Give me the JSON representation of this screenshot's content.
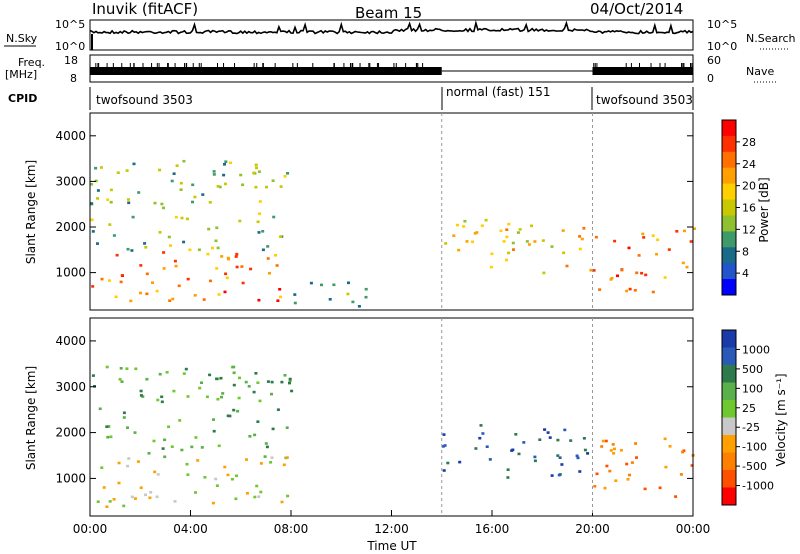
{
  "header": {
    "station": "Inuvik (fitACF)",
    "beam": "Beam 15",
    "date": "04/Oct/2014"
  },
  "panels": {
    "nsky": {
      "label": "N.Sky",
      "right_label": "N.Search",
      "ticks_left": [
        "10^5",
        "10^0"
      ],
      "ticks_right": [
        "10^5",
        "10^0"
      ]
    },
    "freq": {
      "label_top": "Freq.",
      "label_bottom": "[MHz]",
      "right_label": "Nave",
      "ticks_left": [
        "18",
        "8"
      ],
      "ticks_right": [
        "60",
        "0"
      ]
    },
    "cpid": {
      "label": "CPID",
      "segments": [
        {
          "name": "twofsound 3503",
          "start_hour": 0,
          "end_hour": 14
        },
        {
          "name": "normal (fast) 151",
          "start_hour": 14,
          "end_hour": 20
        },
        {
          "name": "twofsound 3503",
          "start_hour": 20,
          "end_hour": 24
        }
      ]
    }
  },
  "chart_data": [
    {
      "type": "heatmap",
      "title": "",
      "ylabel": "Slant Range [km]",
      "xlabel": "",
      "xlim": [
        0,
        24
      ],
      "ylim": [
        180,
        4500
      ],
      "y_ticks": [
        "1000",
        "2000",
        "3000",
        "4000"
      ],
      "colorbar": {
        "label": "Power [dB]",
        "ticks": [
          "4",
          "8",
          "12",
          "16",
          "20",
          "24",
          "28"
        ],
        "range": [
          0,
          32
        ],
        "colors": [
          "#0000ff",
          "#2255cc",
          "#1a6a8a",
          "#3f9a6a",
          "#8ec030",
          "#c8c800",
          "#ffd000",
          "#ffa000",
          "#ff7000",
          "#ff3000",
          "#ff0000"
        ]
      },
      "description_regions": [
        {
          "hours": [
            0,
            8
          ],
          "range_km": [
            400,
            1500
          ],
          "power_db": 26
        },
        {
          "hours": [
            0,
            8
          ],
          "range_km": [
            1500,
            3500
          ],
          "power_db": 14
        },
        {
          "hours": [
            8,
            11
          ],
          "range_km": [
            200,
            900
          ],
          "power_db": 10
        },
        {
          "hours": [
            14,
            20
          ],
          "range_km": [
            1000,
            2200
          ],
          "power_db": 18
        },
        {
          "hours": [
            20,
            24
          ],
          "range_km": [
            600,
            2000
          ],
          "power_db": 26
        }
      ]
    },
    {
      "type": "heatmap",
      "title": "",
      "ylabel": "Slant Range [km]",
      "xlabel": "Time UT",
      "xlim": [
        0,
        24
      ],
      "ylim": [
        180,
        4500
      ],
      "x_ticks": [
        "00:00",
        "04:00",
        "08:00",
        "12:00",
        "16:00",
        "20:00",
        "00:00"
      ],
      "y_ticks": [
        "1000",
        "2000",
        "3000",
        "4000"
      ],
      "colorbar": {
        "label": "Velocity [m s⁻¹]",
        "ticks": [
          "1000",
          "500",
          "100",
          "25",
          "-25",
          "-100",
          "-500",
          "-1000"
        ],
        "colors": [
          "#1a3aa8",
          "#2a5ab8",
          "#2e7a4a",
          "#5ab04a",
          "#70c830",
          "#c8c8c8",
          "#ffa000",
          "#ff8000",
          "#ff5000",
          "#ff0000"
        ]
      },
      "description_regions": [
        {
          "hours": [
            0,
            8
          ],
          "range_km": [
            400,
            1500
          ],
          "velocity_class": "-25 to 25 / 100"
        },
        {
          "hours": [
            0,
            8
          ],
          "range_km": [
            1500,
            3500
          ],
          "velocity_class": "100 to 500"
        },
        {
          "hours": [
            14,
            20
          ],
          "range_km": [
            1000,
            2200
          ],
          "velocity_class": "500 to 1000"
        },
        {
          "hours": [
            20,
            24
          ],
          "range_km": [
            600,
            2000
          ],
          "velocity_class": "-100 to -500"
        }
      ]
    }
  ]
}
